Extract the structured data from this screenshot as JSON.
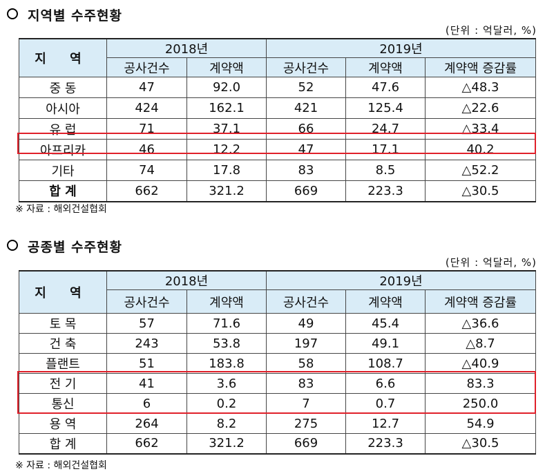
{
  "section1": {
    "title": "지역별 수주현황",
    "unit": "(단위 : 억달러, %)",
    "region_header": "지 역",
    "year1": "2018년",
    "year2": "2019년",
    "col_headers": [
      "공사건수",
      "계약액",
      "공사건수",
      "계약액",
      "계약액 증감률"
    ],
    "rows": [
      [
        "중 동",
        "47",
        "92.0",
        "52",
        "47.6",
        "△48.3"
      ],
      [
        "아시아",
        "424",
        "162.1",
        "421",
        "125.4",
        "△22.6"
      ],
      [
        "유 럽",
        "71",
        "37.1",
        "66",
        "24.7",
        "△33.4"
      ],
      [
        "아프리카",
        "46",
        "12.2",
        "47",
        "17.1",
        "40.2"
      ],
      [
        "기타",
        "74",
        "17.8",
        "83",
        "8.5",
        "△52.2"
      ],
      [
        "합 계",
        "662",
        "321.2",
        "669",
        "223.3",
        "△30.5"
      ]
    ],
    "source": "※ 자료 : 해외건설협회"
  },
  "section2": {
    "title": "공종별 수주현황",
    "unit": "(단위 : 억달러, %)",
    "region_header": "지 역",
    "year1": "2018년",
    "year2": "2019년",
    "col_headers": [
      "공사건수",
      "계약액",
      "공사건수",
      "계약액",
      "계약액 증감률"
    ],
    "rows": [
      [
        "토 목",
        "57",
        "71.6",
        "49",
        "45.4",
        "△36.6"
      ],
      [
        "건 축",
        "243",
        "53.8",
        "197",
        "49.1",
        "△8.7"
      ],
      [
        "플랜트",
        "51",
        "183.8",
        "58",
        "108.7",
        "△40.9"
      ],
      [
        "전 기",
        "41",
        "3.6",
        "83",
        "6.6",
        "83.3"
      ],
      [
        "통신",
        "6",
        "0.2",
        "7",
        "0.7",
        "250.0"
      ],
      [
        "용 역",
        "264",
        "8.2",
        "275",
        "12.7",
        "54.9"
      ],
      [
        "합 계",
        "662",
        "321.2",
        "669",
        "223.3",
        "△30.5"
      ]
    ],
    "source": "※ 자료 : 해외건설협회"
  },
  "colors": {
    "header_bg": "#d9ecf7",
    "highlight": "#e0202a"
  }
}
